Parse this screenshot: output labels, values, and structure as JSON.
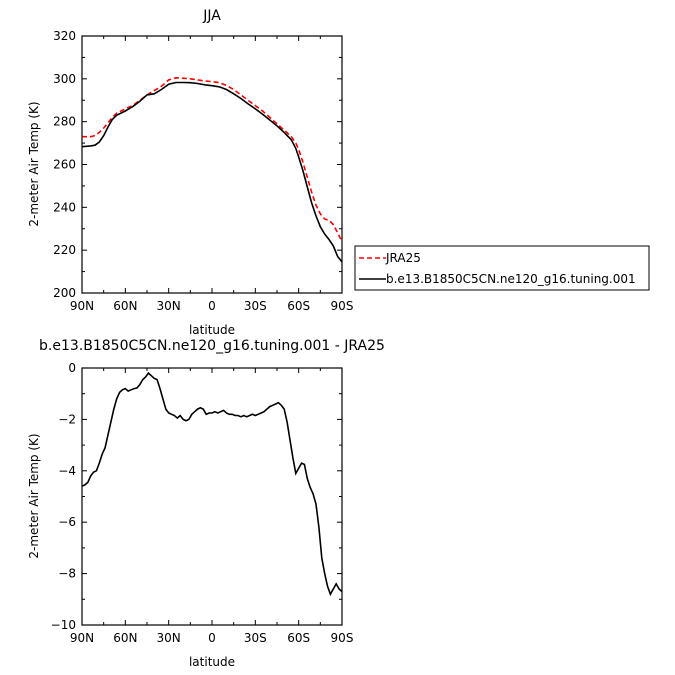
{
  "chart_data": [
    {
      "type": "line",
      "title": "JJA",
      "xlabel": "latitude",
      "ylabel": "2-meter Air Temp (K)",
      "xlim": [
        90,
        -90
      ],
      "ylim": [
        200,
        320
      ],
      "xticks": [
        90,
        60,
        30,
        0,
        -30,
        -60,
        -90
      ],
      "xtick_labels": [
        "90N",
        "60N",
        "30N",
        "0",
        "30S",
        "60S",
        "90S"
      ],
      "yticks": [
        200,
        220,
        240,
        260,
        280,
        300,
        320
      ],
      "ytick_labels": [
        "200",
        "220",
        "240",
        "260",
        "280",
        "300",
        "320"
      ],
      "legend_position": "outside-right",
      "grid": false,
      "series": [
        {
          "name": "JRA25",
          "color": "#ff0000",
          "dash": "dashed",
          "x": [
            90,
            87,
            84,
            81,
            78,
            75,
            72,
            69,
            66,
            63,
            60,
            55,
            50,
            45,
            40,
            35,
            30,
            25,
            20,
            15,
            10,
            5,
            0,
            -5,
            -10,
            -15,
            -20,
            -25,
            -30,
            -35,
            -40,
            -45,
            -50,
            -55,
            -58,
            -60,
            -63,
            -66,
            -69,
            -72,
            -75,
            -78,
            -81,
            -84,
            -87,
            -90
          ],
          "y": [
            273,
            273,
            273,
            273.5,
            275,
            277,
            279.5,
            282,
            284,
            285,
            286,
            287.5,
            290,
            292.5,
            294.5,
            296.5,
            299.5,
            300.5,
            300.3,
            300,
            299.5,
            299,
            298.7,
            298.2,
            297,
            295,
            292.5,
            290,
            287.5,
            285,
            282,
            279,
            276,
            273,
            270,
            267,
            261,
            254,
            247,
            241,
            237,
            234.5,
            234,
            232,
            228,
            224
          ]
        },
        {
          "name": "b.e13.B1850C5CN.ne120_g16.tuning.001",
          "color": "#000000",
          "dash": "solid",
          "x": [
            90,
            87,
            84,
            81,
            78,
            75,
            72,
            69,
            66,
            63,
            60,
            55,
            50,
            45,
            40,
            35,
            30,
            25,
            20,
            15,
            10,
            5,
            0,
            -5,
            -10,
            -15,
            -20,
            -25,
            -30,
            -35,
            -40,
            -45,
            -50,
            -55,
            -58,
            -60,
            -63,
            -66,
            -69,
            -72,
            -75,
            -78,
            -81,
            -84,
            -87,
            -90
          ],
          "y": [
            268.3,
            268.5,
            268.7,
            269,
            270.5,
            273.5,
            277.5,
            281,
            283,
            284,
            285,
            287,
            289.5,
            292.5,
            293,
            295,
            297.5,
            298.3,
            298.3,
            298.2,
            297.8,
            297.2,
            296.8,
            296.3,
            295,
            293,
            290.8,
            288.3,
            286,
            283.5,
            280.8,
            278,
            275,
            271.5,
            267.5,
            263.5,
            257,
            249.5,
            242,
            236,
            231,
            227.5,
            225,
            222,
            217,
            214.5
          ]
        }
      ]
    },
    {
      "type": "line",
      "title": "b.e13.B1850C5CN.ne120_g16.tuning.001 - JRA25",
      "xlabel": "latitude",
      "ylabel": "2-meter Air Temp (K)",
      "xlim": [
        90,
        -90
      ],
      "ylim": [
        -10,
        0
      ],
      "xticks": [
        90,
        60,
        30,
        0,
        -30,
        -60,
        -90
      ],
      "xtick_labels": [
        "90N",
        "60N",
        "30N",
        "0",
        "30S",
        "60S",
        "90S"
      ],
      "yticks": [
        -10,
        -8,
        -6,
        -4,
        -2,
        0
      ],
      "ytick_labels": [
        "−10",
        "−8",
        "−6",
        "−4",
        "−2",
        "0"
      ],
      "grid": false,
      "series": [
        {
          "color": "#000000",
          "dash": "solid",
          "x": [
            90,
            88,
            86,
            84,
            82,
            80,
            78,
            76,
            74,
            72,
            70,
            68,
            66,
            64,
            62,
            60,
            58,
            56,
            54,
            52,
            50,
            48,
            46,
            44,
            42,
            40,
            38,
            36,
            34,
            32,
            30,
            28,
            26,
            24,
            22,
            20,
            18,
            16,
            14,
            12,
            10,
            8,
            6,
            4,
            2,
            0,
            -2,
            -4,
            -6,
            -8,
            -10,
            -12,
            -14,
            -16,
            -18,
            -20,
            -22,
            -24,
            -26,
            -28,
            -30,
            -32,
            -34,
            -36,
            -38,
            -40,
            -42,
            -44,
            -46,
            -48,
            -50,
            -52,
            -54,
            -56,
            -58,
            -60,
            -62,
            -64,
            -66,
            -68,
            -70,
            -72,
            -74,
            -76,
            -78,
            -80,
            -82,
            -84,
            -86,
            -88,
            -90
          ],
          "y": [
            -4.6,
            -4.55,
            -4.45,
            -4.2,
            -4.05,
            -4.0,
            -3.7,
            -3.35,
            -3.1,
            -2.6,
            -2.1,
            -1.6,
            -1.2,
            -0.95,
            -0.85,
            -0.8,
            -0.9,
            -0.85,
            -0.8,
            -0.78,
            -0.65,
            -0.45,
            -0.35,
            -0.2,
            -0.3,
            -0.4,
            -0.45,
            -0.8,
            -1.2,
            -1.6,
            -1.75,
            -1.8,
            -1.85,
            -1.95,
            -1.85,
            -2.0,
            -2.05,
            -2.0,
            -1.8,
            -1.7,
            -1.6,
            -1.55,
            -1.6,
            -1.8,
            -1.75,
            -1.75,
            -1.7,
            -1.75,
            -1.7,
            -1.65,
            -1.75,
            -1.8,
            -1.8,
            -1.85,
            -1.85,
            -1.9,
            -1.85,
            -1.9,
            -1.85,
            -1.8,
            -1.85,
            -1.8,
            -1.75,
            -1.7,
            -1.6,
            -1.5,
            -1.45,
            -1.4,
            -1.35,
            -1.45,
            -1.6,
            -2.1,
            -2.8,
            -3.5,
            -4.1,
            -3.9,
            -3.7,
            -3.75,
            -4.3,
            -4.65,
            -4.9,
            -5.3,
            -6.2,
            -7.4,
            -8.0,
            -8.5,
            -8.8,
            -8.6,
            -8.4,
            -8.6,
            -8.7
          ]
        }
      ]
    }
  ]
}
